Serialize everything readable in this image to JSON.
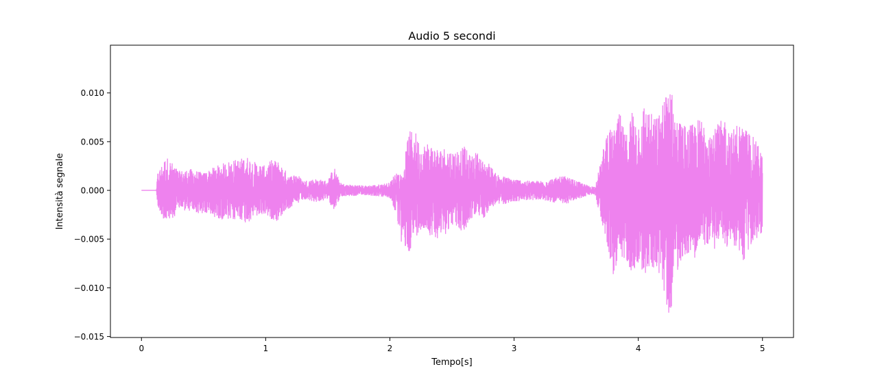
{
  "chart_data": {
    "type": "line",
    "title": "Audio 5 secondi",
    "xlabel": "Tempo[s]",
    "ylabel": "Intensità segnale",
    "xlim": [
      -0.25,
      5.25
    ],
    "ylim": [
      -0.0151,
      0.0149
    ],
    "x_ticks": [
      0,
      1,
      2,
      3,
      4,
      5
    ],
    "x_tick_labels": [
      "0",
      "1",
      "2",
      "3",
      "4",
      "5"
    ],
    "y_ticks": [
      -0.015,
      -0.01,
      -0.005,
      0.0,
      0.005,
      0.01
    ],
    "y_tick_labels": [
      "−0.015",
      "−0.010",
      "−0.005",
      "0.000",
      "0.005",
      "0.010"
    ],
    "grid": false,
    "legend": "none",
    "series_color": "#ee82ee",
    "envelope": {
      "t": [
        0,
        0.12,
        0.13,
        0.2,
        0.25,
        0.3,
        0.4,
        0.5,
        0.6,
        0.7,
        0.8,
        0.85,
        0.9,
        1.0,
        1.05,
        1.1,
        1.15,
        1.2,
        1.25,
        1.3,
        1.4,
        1.5,
        1.55,
        1.6,
        1.65,
        1.7,
        1.8,
        1.9,
        2.0,
        2.05,
        2.1,
        2.15,
        2.2,
        2.25,
        2.3,
        2.4,
        2.45,
        2.5,
        2.6,
        2.65,
        2.7,
        2.75,
        2.8,
        2.85,
        2.9,
        3.0,
        3.1,
        3.2,
        3.3,
        3.4,
        3.5,
        3.6,
        3.65,
        3.7,
        3.75,
        3.8,
        3.85,
        3.9,
        3.95,
        4.0,
        4.05,
        4.1,
        4.15,
        4.2,
        4.25,
        4.3,
        4.35,
        4.4,
        4.45,
        4.5,
        4.55,
        4.6,
        4.65,
        4.7,
        4.75,
        4.8,
        4.85,
        4.9,
        4.95,
        5.0
      ],
      "upper": [
        0,
        0,
        0.0018,
        0.0035,
        0.0028,
        0.002,
        0.0022,
        0.0018,
        0.0025,
        0.003,
        0.0033,
        0.0035,
        0.003,
        0.0025,
        0.0032,
        0.003,
        0.0022,
        0.0015,
        0.0018,
        0.001,
        0.0012,
        0.001,
        0.0025,
        0.0008,
        0.0006,
        0.0006,
        0.0005,
        0.0006,
        0.0008,
        0.002,
        0.0015,
        0.006,
        0.0063,
        0.0045,
        0.005,
        0.0042,
        0.0045,
        0.004,
        0.0045,
        0.0035,
        0.004,
        0.003,
        0.0028,
        0.0018,
        0.0015,
        0.0012,
        0.001,
        0.001,
        0.0012,
        0.0015,
        0.001,
        0.0005,
        0.0004,
        0.003,
        0.0065,
        0.006,
        0.008,
        0.0055,
        0.0085,
        0.007,
        0.009,
        0.008,
        0.0075,
        0.009,
        0.012,
        0.0075,
        0.007,
        0.0065,
        0.007,
        0.0075,
        0.0072,
        0.006,
        0.007,
        0.0075,
        0.006,
        0.007,
        0.0065,
        0.006,
        0.005,
        0.004
      ],
      "lower": [
        0,
        0,
        -0.0018,
        -0.0035,
        -0.003,
        -0.002,
        -0.0022,
        -0.0025,
        -0.0028,
        -0.0032,
        -0.003,
        -0.0035,
        -0.0028,
        -0.0025,
        -0.003,
        -0.0032,
        -0.0022,
        -0.0018,
        -0.0015,
        -0.001,
        -0.0012,
        -0.001,
        -0.002,
        -0.0008,
        -0.0006,
        -0.0006,
        -0.0005,
        -0.0006,
        -0.0008,
        -0.0025,
        -0.006,
        -0.0065,
        -0.005,
        -0.004,
        -0.0045,
        -0.005,
        -0.0045,
        -0.0035,
        -0.0045,
        -0.003,
        -0.0025,
        -0.003,
        -0.002,
        -0.0015,
        -0.0015,
        -0.0012,
        -0.001,
        -0.001,
        -0.0012,
        -0.0015,
        -0.001,
        -0.0005,
        -0.0004,
        -0.003,
        -0.0055,
        -0.009,
        -0.008,
        -0.007,
        -0.0085,
        -0.0075,
        -0.009,
        -0.008,
        -0.008,
        -0.01,
        -0.0135,
        -0.009,
        -0.007,
        -0.0065,
        -0.007,
        -0.006,
        -0.0055,
        -0.0065,
        -0.005,
        -0.006,
        -0.0055,
        -0.006,
        -0.0075,
        -0.006,
        -0.005,
        -0.0045
      ]
    }
  }
}
